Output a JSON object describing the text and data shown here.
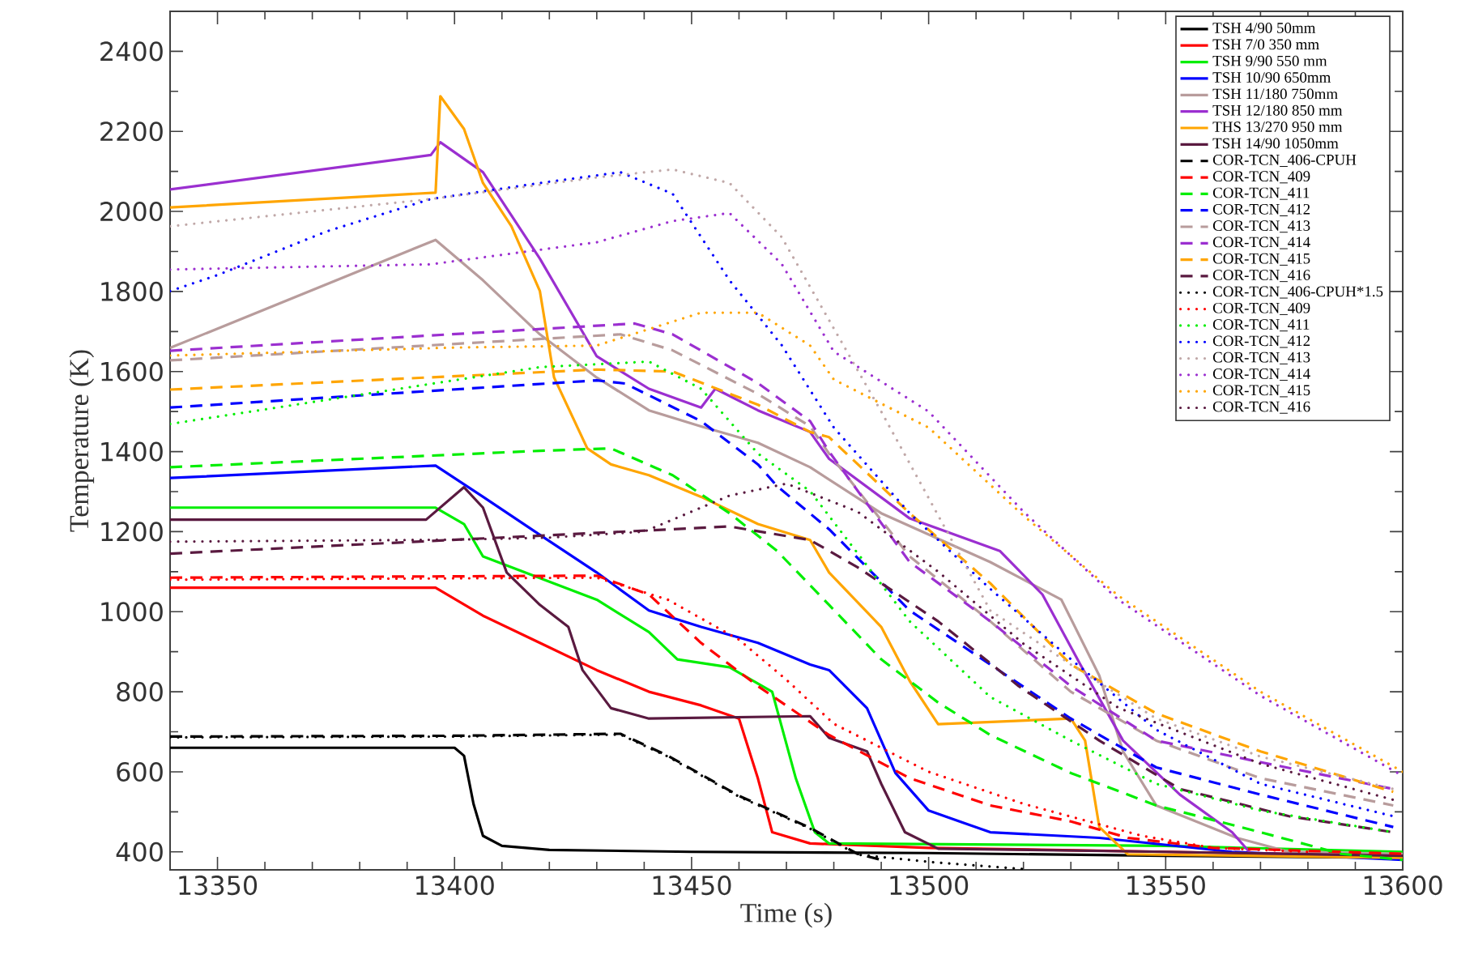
{
  "chart_data": {
    "type": "line",
    "xlabel": "Time (s)",
    "ylabel": "Temperature (K)",
    "xlim": [
      13340,
      13600
    ],
    "ylim": [
      355,
      2500
    ],
    "xticks": [
      13350,
      13400,
      13450,
      13500,
      13550,
      13600
    ],
    "yticks": [
      400,
      600,
      800,
      1000,
      1200,
      1400,
      1600,
      1800,
      2000,
      2200,
      2400
    ],
    "grid": false,
    "marker": "none",
    "legend": "top right",
    "series": [
      {
        "name": "TSH 4/90 50mm",
        "color": "#000000",
        "line_style": "solid",
        "x": [
          13340,
          13400,
          13402,
          13404,
          13406,
          13410,
          13420,
          13450,
          13500,
          13550,
          13600
        ],
        "values": [
          660,
          660,
          640,
          520,
          440,
          415,
          405,
          400,
          397,
          390,
          385
        ]
      },
      {
        "name": "TSH 7/0 350 mm",
        "color": "#ff0000",
        "line_style": "solid",
        "x": [
          13340,
          13396,
          13406,
          13418,
          13430,
          13441,
          13452,
          13460,
          13464,
          13467,
          13475,
          13500,
          13550,
          13600
        ],
        "values": [
          1060,
          1060,
          990,
          922,
          854,
          800,
          766,
          733,
          583,
          449,
          421,
          410,
          400,
          390
        ]
      },
      {
        "name": "TSH 9/90 550 mm",
        "color": "#00ee00",
        "line_style": "solid",
        "x": [
          13340,
          13396,
          13402,
          13406,
          13418,
          13430,
          13441,
          13447,
          13458,
          13467,
          13472,
          13476,
          13479,
          13550,
          13600
        ],
        "values": [
          1260,
          1260,
          1219,
          1138,
          1084,
          1030,
          949,
          881,
          861,
          800,
          583,
          449,
          421,
          415,
          400
        ]
      },
      {
        "name": "TSH 10/90 650mm",
        "color": "#0000ff",
        "line_style": "solid",
        "x": [
          13340,
          13396,
          13406,
          13418,
          13430,
          13441,
          13452,
          13464,
          13475,
          13479,
          13487,
          13493,
          13500,
          13513,
          13536,
          13564,
          13600
        ],
        "values": [
          1334,
          1365,
          1287,
          1192,
          1098,
          1003,
          962,
          922,
          868,
          854,
          759,
          597,
          503,
          449,
          435,
          400,
          380
        ]
      },
      {
        "name": "TSH 11/180 750mm",
        "color": "#b89c9c",
        "line_style": "solid",
        "x": [
          13340,
          13396,
          13406,
          13418,
          13430,
          13441,
          13452,
          13464,
          13475,
          13490,
          13513,
          13528,
          13536,
          13541,
          13548,
          13565,
          13576,
          13600
        ],
        "values": [
          1659,
          1929,
          1828,
          1693,
          1585,
          1503,
          1463,
          1422,
          1361,
          1246,
          1124,
          1030,
          840,
          651,
          516,
          435,
          400,
          395
        ]
      },
      {
        "name": "TSH 12/180 850 mm",
        "color": "#9b2fd0",
        "line_style": "solid",
        "x": [
          13340,
          13395,
          13397,
          13406,
          13418,
          13430,
          13441,
          13452,
          13455,
          13464,
          13475,
          13479,
          13496,
          13515,
          13524,
          13532,
          13541,
          13553,
          13564,
          13568,
          13600
        ],
        "values": [
          2055,
          2141,
          2173,
          2098,
          1882,
          1638,
          1557,
          1510,
          1557,
          1503,
          1449,
          1382,
          1233,
          1152,
          1043,
          868,
          678,
          543,
          449,
          395,
          385
        ]
      },
      {
        "name": "THS 13/270 950 mm",
        "color": "#ffa500",
        "line_style": "solid",
        "x": [
          13340,
          13396,
          13397,
          13402,
          13406,
          13412,
          13418,
          13421,
          13428,
          13433,
          13441,
          13452,
          13464,
          13475,
          13479,
          13490,
          13496,
          13502,
          13530,
          13533,
          13536,
          13542,
          13600
        ],
        "values": [
          2010,
          2047,
          2288,
          2206,
          2071,
          1963,
          1801,
          1585,
          1408,
          1368,
          1341,
          1287,
          1219,
          1179,
          1098,
          962,
          827,
          719,
          733,
          678,
          462,
          394,
          385
        ]
      },
      {
        "name": "TSH 14/90 1050mm",
        "color": "#5a1a40",
        "line_style": "solid",
        "x": [
          13340,
          13394,
          13402,
          13406,
          13411,
          13418,
          13424,
          13427,
          13433,
          13441,
          13475,
          13479,
          13487,
          13490,
          13495,
          13502,
          13550,
          13600
        ],
        "values": [
          1230,
          1230,
          1311,
          1260,
          1098,
          1017,
          962,
          854,
          759,
          733,
          739,
          685,
          651,
          570,
          449,
          408,
          400,
          390
        ]
      },
      {
        "name": "COR-TCN_406-CPUH",
        "color": "#000000",
        "line_style": "dashed",
        "x": [
          13340,
          13400,
          13435,
          13445,
          13460,
          13475,
          13485,
          13490
        ],
        "values": [
          688,
          690,
          695,
          640,
          540,
          460,
          395,
          380
        ]
      },
      {
        "name": "COR-TCN_409",
        "color": "#ff0000",
        "line_style": "dashed",
        "x": [
          13340,
          13430,
          13441,
          13452,
          13464,
          13479,
          13496,
          13513,
          13530,
          13542,
          13560,
          13600
        ],
        "values": [
          1085,
          1090,
          1043,
          922,
          814,
          692,
          584,
          516,
          476,
          435,
          410,
          395
        ]
      },
      {
        "name": "COR-TCN_411",
        "color": "#00ee00",
        "line_style": "dashed",
        "x": [
          13340,
          13418,
          13433,
          13446,
          13458,
          13468,
          13479,
          13490,
          13502,
          13513,
          13530,
          13548,
          13570,
          13587,
          13600
        ],
        "values": [
          1361,
          1402,
          1408,
          1341,
          1246,
          1152,
          1017,
          881,
          773,
          692,
          597,
          516,
          449,
          395,
          380
        ]
      },
      {
        "name": "COR-TCN_412",
        "color": "#0000ff",
        "line_style": "dashed",
        "x": [
          13340,
          13430,
          13436,
          13452,
          13464,
          13468,
          13479,
          13496,
          13513,
          13530,
          13548,
          13570,
          13598
        ],
        "values": [
          1510,
          1578,
          1570,
          1476,
          1368,
          1314,
          1206,
          1003,
          868,
          733,
          611,
          543,
          462
        ]
      },
      {
        "name": "COR-TCN_413",
        "color": "#b89c9c",
        "line_style": "dashed",
        "x": [
          13340,
          13435,
          13446,
          13464,
          13475,
          13479,
          13496,
          13513,
          13530,
          13548,
          13570,
          13598
        ],
        "values": [
          1628,
          1693,
          1653,
          1544,
          1463,
          1395,
          1138,
          976,
          800,
          678,
          584,
          516
        ]
      },
      {
        "name": "COR-TCN_414",
        "color": "#9b2fd0",
        "line_style": "dashed",
        "x": [
          13340,
          13438,
          13446,
          13464,
          13475,
          13479,
          13496,
          13513,
          13530,
          13548,
          13570,
          13598
        ],
        "values": [
          1652,
          1720,
          1693,
          1571,
          1476,
          1400,
          1124,
          976,
          814,
          678,
          624,
          557
        ]
      },
      {
        "name": "COR-TCN_415",
        "color": "#ffa500",
        "line_style": "dashed",
        "x": [
          13340,
          13430,
          13446,
          13464,
          13475,
          13479,
          13496,
          13513,
          13530,
          13548,
          13570,
          13598
        ],
        "values": [
          1555,
          1605,
          1600,
          1517,
          1449,
          1436,
          1246,
          1071,
          868,
          746,
          651,
          550
        ]
      },
      {
        "name": "COR-TCN_416",
        "color": "#5a1a40",
        "line_style": "dashed",
        "x": [
          13340,
          13458,
          13475,
          13485,
          13502,
          13519,
          13536,
          13553,
          13576,
          13598
        ],
        "values": [
          1145,
          1213,
          1179,
          1111,
          976,
          814,
          678,
          557,
          489,
          449
        ]
      },
      {
        "name": "COR-TCN_406-CPUH*1.5",
        "color": "#000000",
        "line_style": "dotted",
        "x": [
          13340,
          13400,
          13435,
          13445,
          13460,
          13475,
          13485,
          13500,
          13520
        ],
        "values": [
          686,
          688,
          693,
          638,
          538,
          458,
          393,
          375,
          357
        ]
      },
      {
        "name": "COR-TCN_409",
        "color": "#ff0000",
        "line_style": "dotted",
        "x": [
          13340,
          13430,
          13445,
          13460,
          13470,
          13480,
          13500,
          13520,
          13545,
          13560,
          13580
        ],
        "values": [
          1080,
          1085,
          1030,
          930,
          830,
          720,
          600,
          520,
          440,
          410,
          400
        ]
      },
      {
        "name": "COR-TCN_411",
        "color": "#00ee00",
        "line_style": "dotted",
        "x": [
          13340,
          13418,
          13441,
          13452,
          13464,
          13475,
          13496,
          13513,
          13530,
          13548,
          13570,
          13598
        ],
        "values": [
          1469,
          1611,
          1625,
          1557,
          1395,
          1301,
          976,
          787,
          678,
          570,
          503,
          449
        ]
      },
      {
        "name": "COR-TCN_412",
        "color": "#0000ff",
        "line_style": "dotted",
        "x": [
          13340,
          13350,
          13373,
          13395,
          13418,
          13435,
          13446,
          13458,
          13469,
          13480,
          13496,
          13513,
          13530,
          13548,
          13570,
          13598
        ],
        "values": [
          1801,
          1841,
          1950,
          2031,
          2071,
          2098,
          2044,
          1828,
          1666,
          1460,
          1246,
          1057,
          881,
          705,
          570,
          489
        ]
      },
      {
        "name": "COR-TCN_413",
        "color": "#c0a8a8",
        "line_style": "dotted",
        "x": [
          13340,
          13395,
          13430,
          13446,
          13458,
          13469,
          13490,
          13513,
          13530,
          13548,
          13570,
          13598
        ],
        "values": [
          1963,
          2031,
          2085,
          2105,
          2071,
          1936,
          1500,
          1003,
          868,
          733,
          638,
          557
        ]
      },
      {
        "name": "COR-TCN_414",
        "color": "#9b2fd0",
        "line_style": "dotted",
        "x": [
          13340,
          13395,
          13430,
          13446,
          13458,
          13469,
          13480,
          13500,
          13520,
          13540,
          13570,
          13600
        ],
        "values": [
          1855,
          1868,
          1923,
          1976,
          1996,
          1869,
          1650,
          1500,
          1250,
          1030,
          790,
          590
        ]
      },
      {
        "name": "COR-TCN_415",
        "color": "#ffa500",
        "line_style": "dotted",
        "x": [
          13340,
          13400,
          13430,
          13452,
          13464,
          13475,
          13480,
          13500,
          13520,
          13540,
          13570,
          13600
        ],
        "values": [
          1640,
          1660,
          1665,
          1747,
          1747,
          1665,
          1580,
          1460,
          1240,
          1040,
          800,
          600
        ]
      },
      {
        "name": "COR-TCN_416",
        "color": "#5a1a40",
        "line_style": "dotted",
        "x": [
          13340,
          13400,
          13420,
          13440,
          13458,
          13470,
          13485,
          13502,
          13520,
          13540,
          13570,
          13598
        ],
        "values": [
          1175,
          1180,
          1185,
          1200,
          1290,
          1320,
          1250,
          1100,
          920,
          760,
          620,
          530
        ]
      }
    ]
  }
}
